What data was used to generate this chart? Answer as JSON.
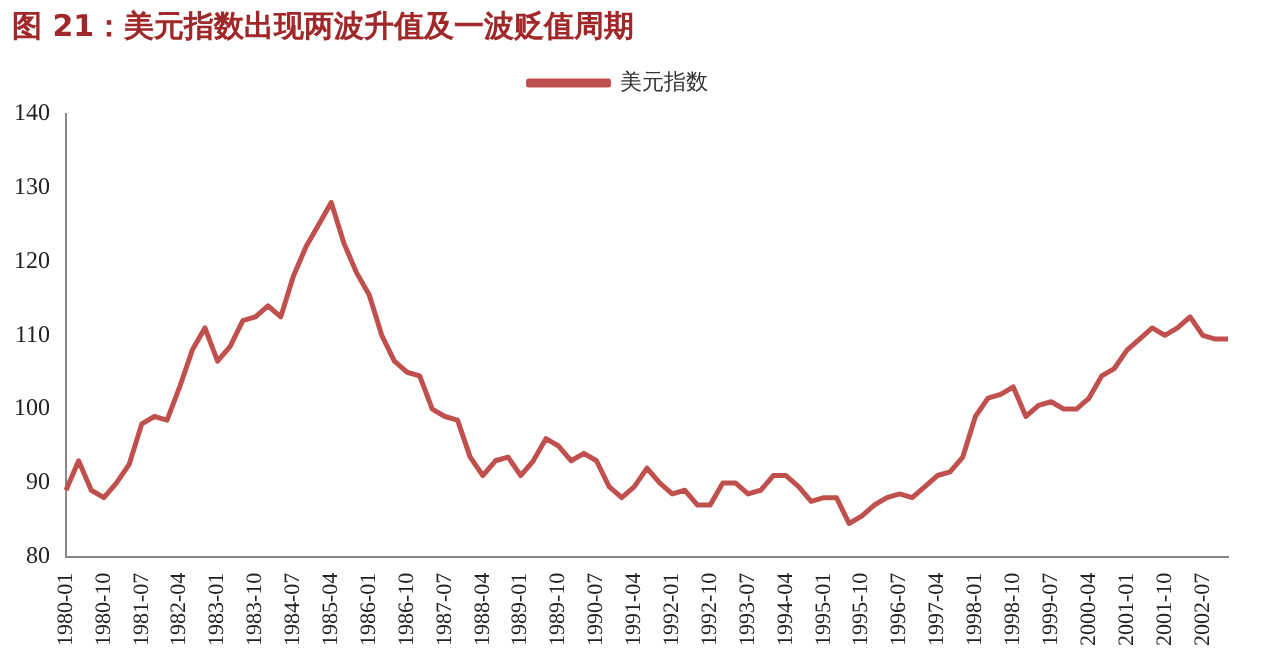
{
  "chart_data": {
    "type": "line",
    "title": "图 21：美元指数出现两波升值及一波贬值周期",
    "categories": [
      "1980-01",
      null,
      null,
      "1980-10",
      null,
      null,
      "1981-07",
      null,
      null,
      "1982-04",
      null,
      null,
      "1983-01",
      null,
      null,
      "1983-10",
      null,
      null,
      "1984-07",
      null,
      null,
      "1985-04",
      null,
      null,
      "1986-01",
      null,
      null,
      "1986-10",
      null,
      null,
      "1987-07",
      null,
      null,
      "1988-04",
      null,
      null,
      "1989-01",
      null,
      null,
      "1989-10",
      null,
      null,
      "1990-07",
      null,
      null,
      "1991-04",
      null,
      null,
      "1992-01",
      null,
      null,
      "1992-10",
      null,
      null,
      "1993-07",
      null,
      null,
      "1994-04",
      null,
      null,
      "1995-01",
      null,
      null,
      "1995-10",
      null,
      null,
      "1996-07",
      null,
      null,
      "1997-04",
      null,
      null,
      "1998-01",
      null,
      null,
      "1998-10",
      null,
      null,
      "1999-07",
      null,
      null,
      "2000-04",
      null,
      null,
      "2001-01",
      null,
      null,
      "2001-10",
      null,
      null,
      "2002-07",
      null,
      null
    ],
    "series": [
      {
        "name": "美元指数",
        "color": "#c0504d",
        "values": [
          89,
          93,
          89,
          88,
          90,
          92.5,
          98,
          99,
          98.5,
          103,
          108,
          111,
          106.5,
          108.5,
          112,
          112.5,
          114,
          112.5,
          118,
          122,
          125,
          128,
          122.5,
          118.5,
          115.5,
          110,
          106.5,
          105,
          104.5,
          100,
          99,
          98.5,
          93.5,
          91,
          93,
          93.5,
          91,
          93,
          96,
          95,
          93,
          94,
          93,
          89.5,
          88,
          89.5,
          92,
          90,
          88.5,
          89,
          87,
          87,
          90,
          90,
          88.5,
          89,
          91,
          91,
          89.5,
          87.5,
          88,
          88,
          84.5,
          85.5,
          87,
          88,
          88.5,
          88,
          89.5,
          91,
          91.5,
          93.5,
          99,
          101.5,
          102,
          103,
          99,
          100.5,
          101,
          100,
          100,
          101.5,
          104.5,
          105.5,
          108,
          109.5,
          111,
          110,
          111,
          112.5,
          110,
          109.5,
          109.5
        ]
      }
    ],
    "ylim": [
      80,
      140
    ],
    "yticks": [
      80,
      90,
      100,
      110,
      120,
      130,
      140
    ],
    "legend": "top"
  }
}
